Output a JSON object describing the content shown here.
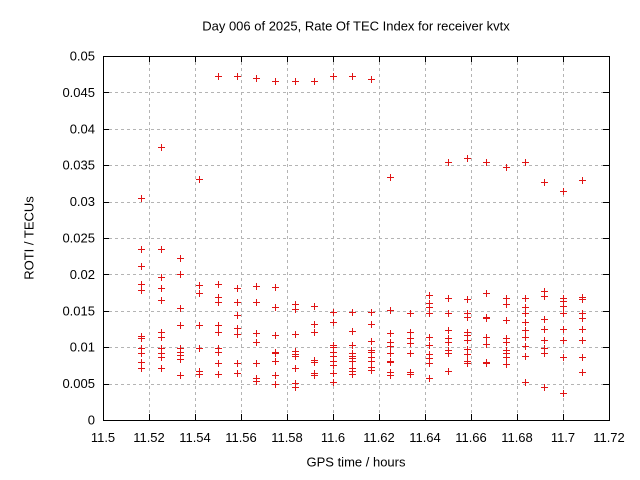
{
  "chart_data": {
    "type": "scatter",
    "title": "Day 006 of 2025, Rate Of TEC Index for receiver kvtx",
    "x_axis": {
      "label": "GPS time / hours",
      "min": 11.5,
      "max": 11.72,
      "tick_values": [
        11.5,
        11.52,
        11.54,
        11.56,
        11.58,
        11.6,
        11.62,
        11.64,
        11.66,
        11.68,
        11.7,
        11.72
      ],
      "tick_labels": [
        "11.5",
        "11.52",
        "11.54",
        "11.56",
        "11.58",
        "11.6",
        "11.62",
        "11.64",
        "11.66",
        "11.68",
        "11.7",
        "11.72"
      ]
    },
    "y_axis": {
      "label": "ROTI / TECUs",
      "min": 0,
      "max": 0.05,
      "tick_values": [
        0,
        0.005,
        0.01,
        0.015,
        0.02,
        0.025,
        0.03,
        0.035,
        0.04,
        0.045,
        0.05
      ],
      "tick_labels": [
        "0",
        "0.005",
        "0.01",
        "0.015",
        "0.02",
        "0.025",
        "0.03",
        "0.035",
        "0.04",
        "0.045",
        "0.05"
      ]
    },
    "grid": true,
    "legend": "none",
    "colors": {
      "marker": "#e01414",
      "grid": "#b4b4b4",
      "frame": "#000000",
      "background": "#ffffff"
    },
    "marker": {
      "shape": "plus",
      "size": 7
    },
    "series": [
      {
        "name": "ROTI",
        "points": [
          [
            11.5167,
            0.0305
          ],
          [
            11.5167,
            0.0235
          ],
          [
            11.5167,
            0.0212
          ],
          [
            11.5167,
            0.0187
          ],
          [
            11.5167,
            0.0178
          ],
          [
            11.5167,
            0.0115
          ],
          [
            11.5167,
            0.0112
          ],
          [
            11.5167,
            0.0099
          ],
          [
            11.5167,
            0.0092
          ],
          [
            11.5167,
            0.008
          ],
          [
            11.5167,
            0.0071
          ],
          [
            11.525,
            0.0375
          ],
          [
            11.525,
            0.0235
          ],
          [
            11.525,
            0.0196
          ],
          [
            11.525,
            0.0181
          ],
          [
            11.525,
            0.0165
          ],
          [
            11.525,
            0.0121
          ],
          [
            11.525,
            0.0114
          ],
          [
            11.525,
            0.0099
          ],
          [
            11.525,
            0.0092
          ],
          [
            11.525,
            0.0087
          ],
          [
            11.525,
            0.0071
          ],
          [
            11.5333,
            0.0223
          ],
          [
            11.5333,
            0.02
          ],
          [
            11.5333,
            0.0154
          ],
          [
            11.5333,
            0.013
          ],
          [
            11.5333,
            0.0099
          ],
          [
            11.5333,
            0.0093
          ],
          [
            11.5333,
            0.0089
          ],
          [
            11.5333,
            0.0084
          ],
          [
            11.5333,
            0.0062
          ],
          [
            11.5417,
            0.0331
          ],
          [
            11.5417,
            0.0186
          ],
          [
            11.5417,
            0.0174
          ],
          [
            11.5417,
            0.013
          ],
          [
            11.5417,
            0.0099
          ],
          [
            11.5417,
            0.0067
          ],
          [
            11.5417,
            0.0063
          ],
          [
            11.55,
            0.0472
          ],
          [
            11.55,
            0.0187
          ],
          [
            11.55,
            0.0169
          ],
          [
            11.55,
            0.0162
          ],
          [
            11.55,
            0.013
          ],
          [
            11.55,
            0.0121
          ],
          [
            11.55,
            0.0099
          ],
          [
            11.55,
            0.0093
          ],
          [
            11.55,
            0.0078
          ],
          [
            11.55,
            0.0063
          ],
          [
            11.5583,
            0.0472
          ],
          [
            11.5583,
            0.0181
          ],
          [
            11.5583,
            0.0162
          ],
          [
            11.5583,
            0.0144
          ],
          [
            11.5583,
            0.0126
          ],
          [
            11.5583,
            0.0118
          ],
          [
            11.5583,
            0.0078
          ],
          [
            11.5583,
            0.0065
          ],
          [
            11.5667,
            0.047
          ],
          [
            11.5667,
            0.0184
          ],
          [
            11.5667,
            0.0162
          ],
          [
            11.5667,
            0.012
          ],
          [
            11.5667,
            0.0107
          ],
          [
            11.5667,
            0.0078
          ],
          [
            11.5667,
            0.0058
          ],
          [
            11.5667,
            0.0054
          ],
          [
            11.575,
            0.0466
          ],
          [
            11.575,
            0.0183
          ],
          [
            11.575,
            0.0155
          ],
          [
            11.575,
            0.0117
          ],
          [
            11.575,
            0.0094
          ],
          [
            11.575,
            0.0092
          ],
          [
            11.575,
            0.0081
          ],
          [
            11.575,
            0.0062
          ],
          [
            11.575,
            0.0049
          ],
          [
            11.5833,
            0.0466
          ],
          [
            11.5833,
            0.0159
          ],
          [
            11.5833,
            0.0152
          ],
          [
            11.5833,
            0.0118
          ],
          [
            11.5833,
            0.0095
          ],
          [
            11.5833,
            0.0091
          ],
          [
            11.5833,
            0.0088
          ],
          [
            11.5833,
            0.0071
          ],
          [
            11.5833,
            0.0051
          ],
          [
            11.5833,
            0.0045
          ],
          [
            11.5917,
            0.0466
          ],
          [
            11.5917,
            0.0157
          ],
          [
            11.5917,
            0.0132
          ],
          [
            11.5917,
            0.0121
          ],
          [
            11.5917,
            0.0082
          ],
          [
            11.5917,
            0.0079
          ],
          [
            11.5917,
            0.0065
          ],
          [
            11.5917,
            0.0062
          ],
          [
            11.6,
            0.0472
          ],
          [
            11.6,
            0.0148
          ],
          [
            11.6,
            0.0135
          ],
          [
            11.6,
            0.0103
          ],
          [
            11.6,
            0.01
          ],
          [
            11.6,
            0.0093
          ],
          [
            11.6,
            0.0088
          ],
          [
            11.6,
            0.0081
          ],
          [
            11.6,
            0.0076
          ],
          [
            11.6,
            0.0065
          ],
          [
            11.6,
            0.0052
          ],
          [
            11.6083,
            0.0472
          ],
          [
            11.6083,
            0.0148
          ],
          [
            11.6083,
            0.0122
          ],
          [
            11.6083,
            0.0103
          ],
          [
            11.6083,
            0.0092
          ],
          [
            11.6083,
            0.0088
          ],
          [
            11.6083,
            0.0085
          ],
          [
            11.6083,
            0.0081
          ],
          [
            11.6083,
            0.0071
          ],
          [
            11.6083,
            0.0067
          ],
          [
            11.6083,
            0.0063
          ],
          [
            11.6167,
            0.0469
          ],
          [
            11.6167,
            0.0148
          ],
          [
            11.6167,
            0.0132
          ],
          [
            11.6167,
            0.0108
          ],
          [
            11.6167,
            0.0096
          ],
          [
            11.6167,
            0.0093
          ],
          [
            11.6167,
            0.0087
          ],
          [
            11.6167,
            0.0081
          ],
          [
            11.6167,
            0.0073
          ],
          [
            11.6167,
            0.0069
          ],
          [
            11.625,
            0.0334
          ],
          [
            11.625,
            0.0151
          ],
          [
            11.625,
            0.0119
          ],
          [
            11.625,
            0.0107
          ],
          [
            11.625,
            0.0102
          ],
          [
            11.625,
            0.0092
          ],
          [
            11.625,
            0.0081
          ],
          [
            11.625,
            0.008
          ],
          [
            11.625,
            0.0066
          ],
          [
            11.625,
            0.0062
          ],
          [
            11.6333,
            0.0147
          ],
          [
            11.6333,
            0.0121
          ],
          [
            11.6333,
            0.0113
          ],
          [
            11.6333,
            0.0106
          ],
          [
            11.6333,
            0.0092
          ],
          [
            11.6333,
            0.0066
          ],
          [
            11.6333,
            0.0063
          ],
          [
            11.6417,
            0.0172
          ],
          [
            11.6417,
            0.0161
          ],
          [
            11.6417,
            0.0155
          ],
          [
            11.6417,
            0.0147
          ],
          [
            11.6417,
            0.0114
          ],
          [
            11.6417,
            0.0103
          ],
          [
            11.6417,
            0.0091
          ],
          [
            11.6417,
            0.0085
          ],
          [
            11.6417,
            0.0078
          ],
          [
            11.6417,
            0.0058
          ],
          [
            11.65,
            0.0355
          ],
          [
            11.65,
            0.0167
          ],
          [
            11.65,
            0.0147
          ],
          [
            11.65,
            0.0124
          ],
          [
            11.65,
            0.0113
          ],
          [
            11.65,
            0.0107
          ],
          [
            11.65,
            0.0096
          ],
          [
            11.65,
            0.0092
          ],
          [
            11.65,
            0.0067
          ],
          [
            11.6583,
            0.036
          ],
          [
            11.6583,
            0.0166
          ],
          [
            11.6583,
            0.0147
          ],
          [
            11.6583,
            0.0142
          ],
          [
            11.6583,
            0.0121
          ],
          [
            11.6583,
            0.0117
          ],
          [
            11.6583,
            0.011
          ],
          [
            11.6583,
            0.0098
          ],
          [
            11.6583,
            0.0091
          ],
          [
            11.6583,
            0.0081
          ],
          [
            11.6583,
            0.0078
          ],
          [
            11.6667,
            0.0355
          ],
          [
            11.6667,
            0.0174
          ],
          [
            11.6667,
            0.0142
          ],
          [
            11.6667,
            0.014
          ],
          [
            11.6667,
            0.0114
          ],
          [
            11.6667,
            0.0105
          ],
          [
            11.6667,
            0.008
          ],
          [
            11.6667,
            0.0078
          ],
          [
            11.675,
            0.0348
          ],
          [
            11.675,
            0.0167
          ],
          [
            11.675,
            0.016
          ],
          [
            11.675,
            0.0137
          ],
          [
            11.675,
            0.0113
          ],
          [
            11.675,
            0.0107
          ],
          [
            11.675,
            0.0096
          ],
          [
            11.675,
            0.0092
          ],
          [
            11.675,
            0.0087
          ],
          [
            11.675,
            0.0077
          ],
          [
            11.6833,
            0.0355
          ],
          [
            11.6833,
            0.0168
          ],
          [
            11.6833,
            0.0155
          ],
          [
            11.6833,
            0.0147
          ],
          [
            11.6833,
            0.0135
          ],
          [
            11.6833,
            0.0124
          ],
          [
            11.6833,
            0.0114
          ],
          [
            11.6833,
            0.0102
          ],
          [
            11.6833,
            0.0088
          ],
          [
            11.6833,
            0.0052
          ],
          [
            11.6917,
            0.0327
          ],
          [
            11.6917,
            0.0177
          ],
          [
            11.6917,
            0.0171
          ],
          [
            11.6917,
            0.0139
          ],
          [
            11.6917,
            0.0125
          ],
          [
            11.6917,
            0.011
          ],
          [
            11.6917,
            0.0099
          ],
          [
            11.6917,
            0.0092
          ],
          [
            11.6917,
            0.0046
          ],
          [
            11.7,
            0.0315
          ],
          [
            11.7,
            0.0168
          ],
          [
            11.7,
            0.0163
          ],
          [
            11.7,
            0.0157
          ],
          [
            11.7,
            0.0147
          ],
          [
            11.7,
            0.0125
          ],
          [
            11.7,
            0.011
          ],
          [
            11.7,
            0.0086
          ],
          [
            11.7,
            0.0037
          ],
          [
            11.7083,
            0.033
          ],
          [
            11.7083,
            0.0169
          ],
          [
            11.7083,
            0.0166
          ],
          [
            11.7083,
            0.0147
          ],
          [
            11.7083,
            0.014
          ],
          [
            11.7083,
            0.0125
          ],
          [
            11.7083,
            0.011
          ],
          [
            11.7083,
            0.0087
          ],
          [
            11.7083,
            0.0066
          ]
        ]
      }
    ]
  }
}
